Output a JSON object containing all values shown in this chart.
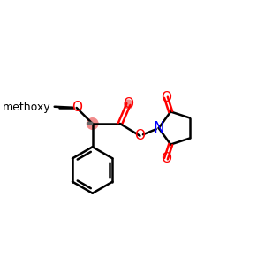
{
  "background_color": "#ffffff",
  "figsize": [
    3.0,
    3.0
  ],
  "dpi": 100,
  "bond_color": "#000000",
  "bond_width": 1.8,
  "o_color": "#ff0000",
  "n_color": "#0000ff",
  "chiral_highlight_color": "#f08080",
  "carbonyl_o_highlight_color": "#f08080",
  "methoxy_text": "methoxy",
  "methoxy_o_label": "O",
  "ester_o_label": "O",
  "carbonyl_o_label": "O",
  "n_label": "N",
  "succ_o1_label": "O",
  "succ_o2_label": "O"
}
